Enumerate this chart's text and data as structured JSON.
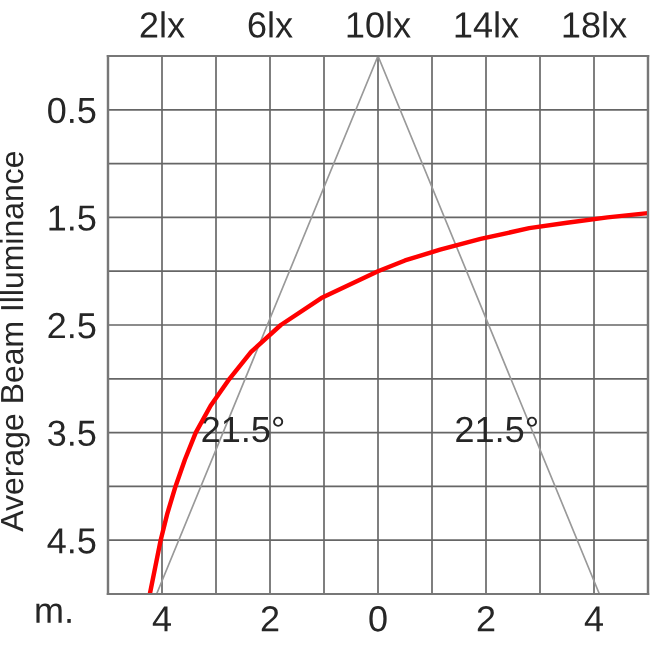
{
  "chart_data": {
    "type": "line",
    "xlabel": "m.",
    "ylabel": "Average Beam Illuminance",
    "xlim": [
      -5,
      5
    ],
    "xticks": [
      {
        "value": -5,
        "label": null
      },
      {
        "value": -4,
        "label": "4"
      },
      {
        "value": -3,
        "label": null
      },
      {
        "value": -2,
        "label": "2"
      },
      {
        "value": -1,
        "label": null
      },
      0,
      {
        "value": 1,
        "label": null
      },
      {
        "value": 2,
        "label": "2"
      },
      {
        "value": 3,
        "label": null
      },
      {
        "value": 4,
        "label": "4"
      },
      {
        "value": 5,
        "label": null
      }
    ],
    "x2lim": [
      0,
      20
    ],
    "x2ticks": [
      {
        "value": 2,
        "label": "2lx"
      },
      {
        "value": 6,
        "label": "6lx"
      },
      {
        "value": 10,
        "label": "10lx"
      },
      {
        "value": 14,
        "label": "14lx"
      },
      {
        "value": 18,
        "label": "18lx"
      }
    ],
    "ylim": [
      5,
      0
    ],
    "yticks": [
      {
        "value": 0,
        "label": null
      },
      0.5,
      {
        "value": 1,
        "label": null
      },
      1.5,
      {
        "value": 2,
        "label": null
      },
      2.5,
      {
        "value": 3,
        "label": null
      },
      3.5,
      {
        "value": 4,
        "label": null
      },
      4.5,
      {
        "value": 5,
        "label": null
      }
    ],
    "grid": true,
    "series": [
      {
        "color": "#999999",
        "x": [
          -4.1,
          0,
          4.1
        ],
        "values": [
          5,
          0,
          5
        ]
      },
      {
        "color": "#ff0000",
        "axis": "x2",
        "x": [
          1.55,
          1.75,
          1.95,
          2.2,
          2.5,
          2.85,
          3.25,
          3.8,
          4.5,
          5.3,
          6.4,
          7.9,
          10.0,
          11.0,
          12.3,
          13.8,
          15.6,
          17.0,
          18.5,
          20.0
        ],
        "values": [
          5.0,
          4.75,
          4.5,
          4.25,
          4.0,
          3.75,
          3.5,
          3.25,
          3.0,
          2.75,
          2.5,
          2.25,
          2.0,
          1.9,
          1.8,
          1.7,
          1.6,
          1.55,
          1.5,
          1.46
        ]
      }
    ],
    "annotations": [
      "21.5°",
      "21.5°"
    ]
  }
}
